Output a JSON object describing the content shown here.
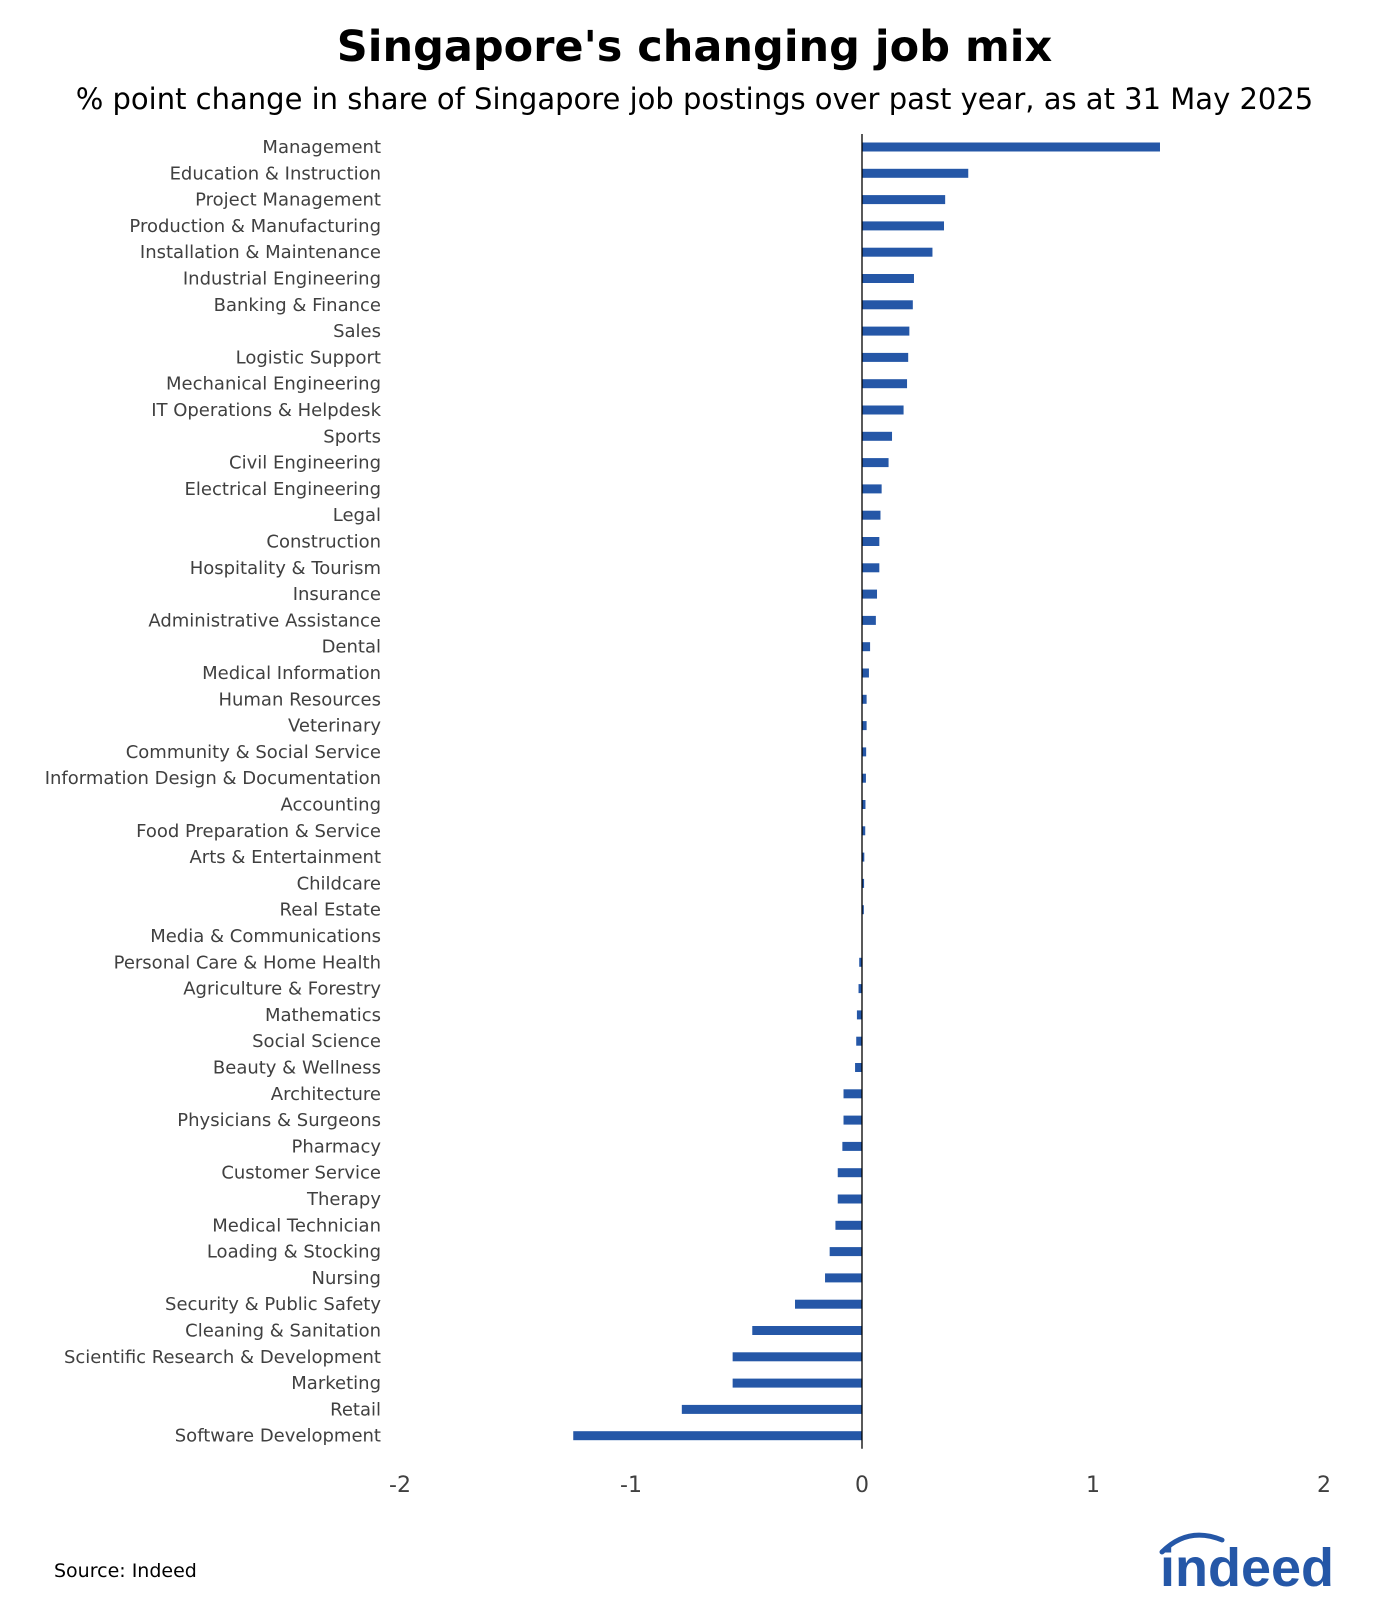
{
  "chart_data": {
    "type": "bar",
    "orientation": "horizontal",
    "title": "Singapore's changing job mix",
    "subtitle": "% point change in share of Singapore job postings over past year, as at 31 May 2025",
    "categories": [
      "Management",
      "Education & Instruction",
      "Project Management",
      "Production & Manufacturing",
      "Installation & Maintenance",
      "Industrial Engineering",
      "Banking & Finance",
      "Sales",
      "Logistic Support",
      "Mechanical Engineering",
      "IT Operations & Helpdesk",
      "Sports",
      "Civil Engineering",
      "Electrical Engineering",
      "Legal",
      "Construction",
      "Hospitality & Tourism",
      "Insurance",
      "Administrative Assistance",
      "Dental",
      "Medical Information",
      "Human Resources",
      "Veterinary",
      "Community & Social Service",
      "Information Design & Documentation",
      "Accounting",
      "Food Preparation & Service",
      "Arts & Entertainment",
      "Childcare",
      "Real Estate",
      "Media & Communications",
      "Personal Care & Home Health",
      "Agriculture & Forestry",
      "Mathematics",
      "Social Science",
      "Beauty & Wellness",
      "Architecture",
      "Physicians & Surgeons",
      "Pharmacy",
      "Customer Service",
      "Therapy",
      "Medical Technician",
      "Loading & Stocking",
      "Nursing",
      "Security & Public Safety",
      "Cleaning & Sanitation",
      "Scientific Research & Development",
      "Marketing",
      "Retail",
      "Software Development"
    ],
    "values": [
      1.29,
      0.46,
      0.36,
      0.355,
      0.305,
      0.225,
      0.22,
      0.205,
      0.2,
      0.195,
      0.18,
      0.13,
      0.115,
      0.085,
      0.08,
      0.075,
      0.075,
      0.065,
      0.06,
      0.035,
      0.03,
      0.02,
      0.02,
      0.018,
      0.017,
      0.015,
      0.014,
      0.01,
      0.009,
      0.008,
      0.0,
      -0.012,
      -0.015,
      -0.022,
      -0.025,
      -0.03,
      -0.08,
      -0.08,
      -0.085,
      -0.105,
      -0.105,
      -0.115,
      -0.14,
      -0.16,
      -0.29,
      -0.475,
      -0.56,
      -0.56,
      -0.78,
      -1.25
    ],
    "xlim": [
      -2,
      2
    ],
    "xticks": [
      -2,
      -1,
      0,
      1,
      2
    ],
    "bar_color": "#2557a7",
    "grid": false,
    "legend": "none"
  },
  "footer": {
    "source": "Source: Indeed",
    "logo_text": "indeed"
  }
}
